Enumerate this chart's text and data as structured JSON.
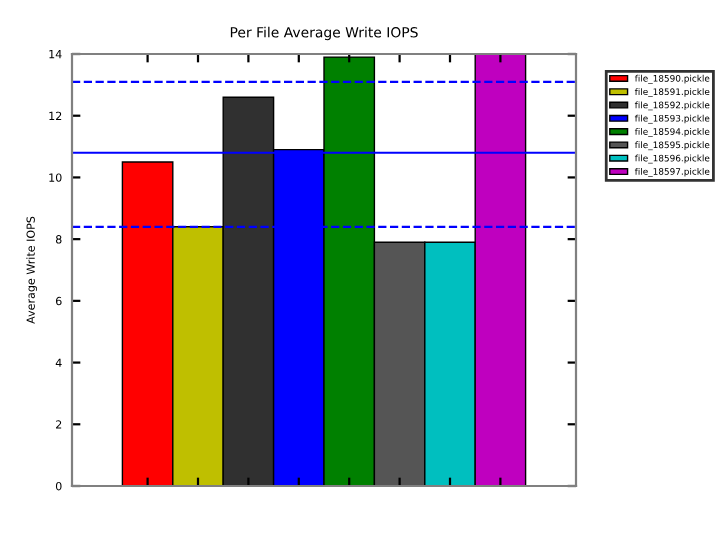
{
  "chart_data": {
    "type": "bar",
    "title": "Per File Average Write IOPS",
    "ylabel": "Average Write IOPS",
    "categories": [
      null,
      null,
      null,
      null,
      null,
      null,
      null,
      null
    ],
    "series": [
      {
        "name": "file_18590.pickle",
        "color": "#ff0000",
        "values": [
          10.5,
          null,
          null,
          null,
          null,
          null,
          null,
          null
        ]
      },
      {
        "name": "file_18591.pickle",
        "color": "#bfbf00",
        "values": [
          null,
          8.4,
          null,
          null,
          null,
          null,
          null,
          null
        ]
      },
      {
        "name": "file_18592.pickle",
        "color": "#303030",
        "values": [
          null,
          null,
          12.6,
          null,
          null,
          null,
          null,
          null
        ]
      },
      {
        "name": "file_18593.pickle",
        "color": "#0000ff",
        "values": [
          null,
          null,
          null,
          10.9,
          null,
          null,
          null,
          null
        ]
      },
      {
        "name": "file_18594.pickle",
        "color": "#008000",
        "values": [
          null,
          null,
          null,
          null,
          13.9,
          null,
          null,
          null
        ]
      },
      {
        "name": "file_18595.pickle",
        "color": "#555555",
        "values": [
          null,
          null,
          null,
          null,
          null,
          7.9,
          null,
          null
        ]
      },
      {
        "name": "file_18596.pickle",
        "color": "#00bfbf",
        "values": [
          null,
          null,
          null,
          null,
          null,
          null,
          7.9,
          null
        ]
      },
      {
        "name": "file_18597.pickle",
        "color": "#bf00bf",
        "values": [
          null,
          null,
          null,
          null,
          null,
          null,
          null,
          14.0
        ]
      }
    ],
    "ylim": [
      0,
      14
    ],
    "yticks": [
      0,
      2,
      4,
      6,
      8,
      10,
      12,
      14
    ],
    "ref_lines": [
      {
        "axis": "y",
        "value": 13.1,
        "color": "#0000ff",
        "line_style": "dashed"
      },
      {
        "axis": "y",
        "value": 10.8,
        "color": "#0000ff",
        "line_style": "solid"
      },
      {
        "axis": "y",
        "value": 8.4,
        "color": "#0000ff",
        "line_style": "dashed"
      }
    ],
    "stacked": true,
    "tick_labels": "y",
    "grid": false,
    "legend": "right"
  }
}
